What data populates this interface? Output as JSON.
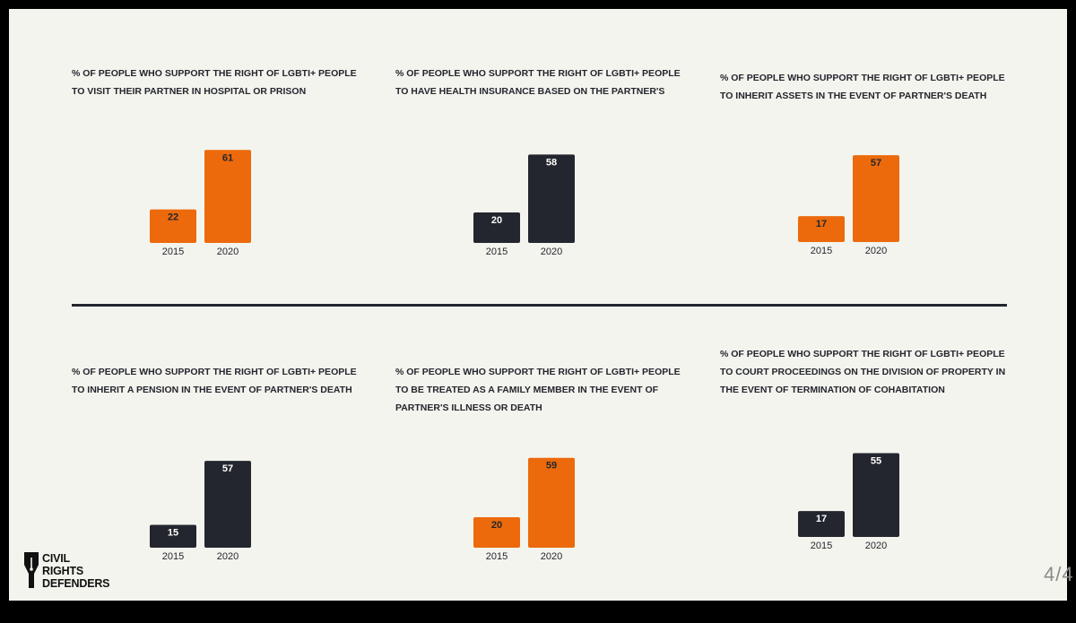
{
  "theme": {
    "orange": "#ec6a0c",
    "navy": "#23262e",
    "background": "#f4f4ee"
  },
  "chart_data": [
    {
      "type": "bar",
      "title": "% OF PEOPLE WHO SUPPORT THE RIGHT OF LGBTI+ PEOPLE TO VISIT THEIR PARTNER IN HOSPITAL OR PRISON",
      "categories": [
        "2015",
        "2020"
      ],
      "values": [
        22,
        61
      ],
      "bar_color": "orange",
      "label_color": "#23262e"
    },
    {
      "type": "bar",
      "title": "% OF PEOPLE WHO SUPPORT THE RIGHT OF LGBTI+ PEOPLE TO HAVE HEALTH INSURANCE BASED ON THE PARTNER'S",
      "categories": [
        "2015",
        "2020"
      ],
      "values": [
        20,
        58
      ],
      "bar_color": "navy",
      "label_color": "#ffffff"
    },
    {
      "type": "bar",
      "title": "% OF PEOPLE WHO SUPPORT THE RIGHT OF LGBTI+ PEOPLE TO INHERIT ASSETS IN THE EVENT OF PARTNER'S DEATH",
      "categories": [
        "2015",
        "2020"
      ],
      "values": [
        17,
        57
      ],
      "bar_color": "orange",
      "label_color": "#23262e"
    },
    {
      "type": "bar",
      "title": "% OF PEOPLE WHO SUPPORT THE RIGHT OF LGBTI+ PEOPLE TO INHERIT A PENSION IN THE EVENT OF PARTNER'S DEATH",
      "categories": [
        "2015",
        "2020"
      ],
      "values": [
        15,
        57
      ],
      "bar_color": "navy",
      "label_color": "#ffffff"
    },
    {
      "type": "bar",
      "title": "% OF PEOPLE WHO SUPPORT THE RIGHT OF LGBTI+ PEOPLE TO BE TREATED AS A FAMILY MEMBER IN THE EVENT OF PARTNER'S ILLNESS OR DEATH",
      "categories": [
        "2015",
        "2020"
      ],
      "values": [
        20,
        59
      ],
      "bar_color": "orange",
      "label_color": "#23262e"
    },
    {
      "type": "bar",
      "title": "% OF PEOPLE WHO SUPPORT THE RIGHT OF LGBTI+ PEOPLE TO COURT PROCEEDINGS ON THE DIVISION OF PROPERTY IN THE EVENT OF TERMINATION OF COHABITATION",
      "categories": [
        "2015",
        "2020"
      ],
      "values": [
        17,
        55
      ],
      "bar_color": "navy",
      "label_color": "#ffffff"
    }
  ],
  "logo": {
    "line1": "CIVIL",
    "line2": "RIGHTS",
    "line3": "DEFENDERS"
  },
  "page_indicator": "4/4"
}
